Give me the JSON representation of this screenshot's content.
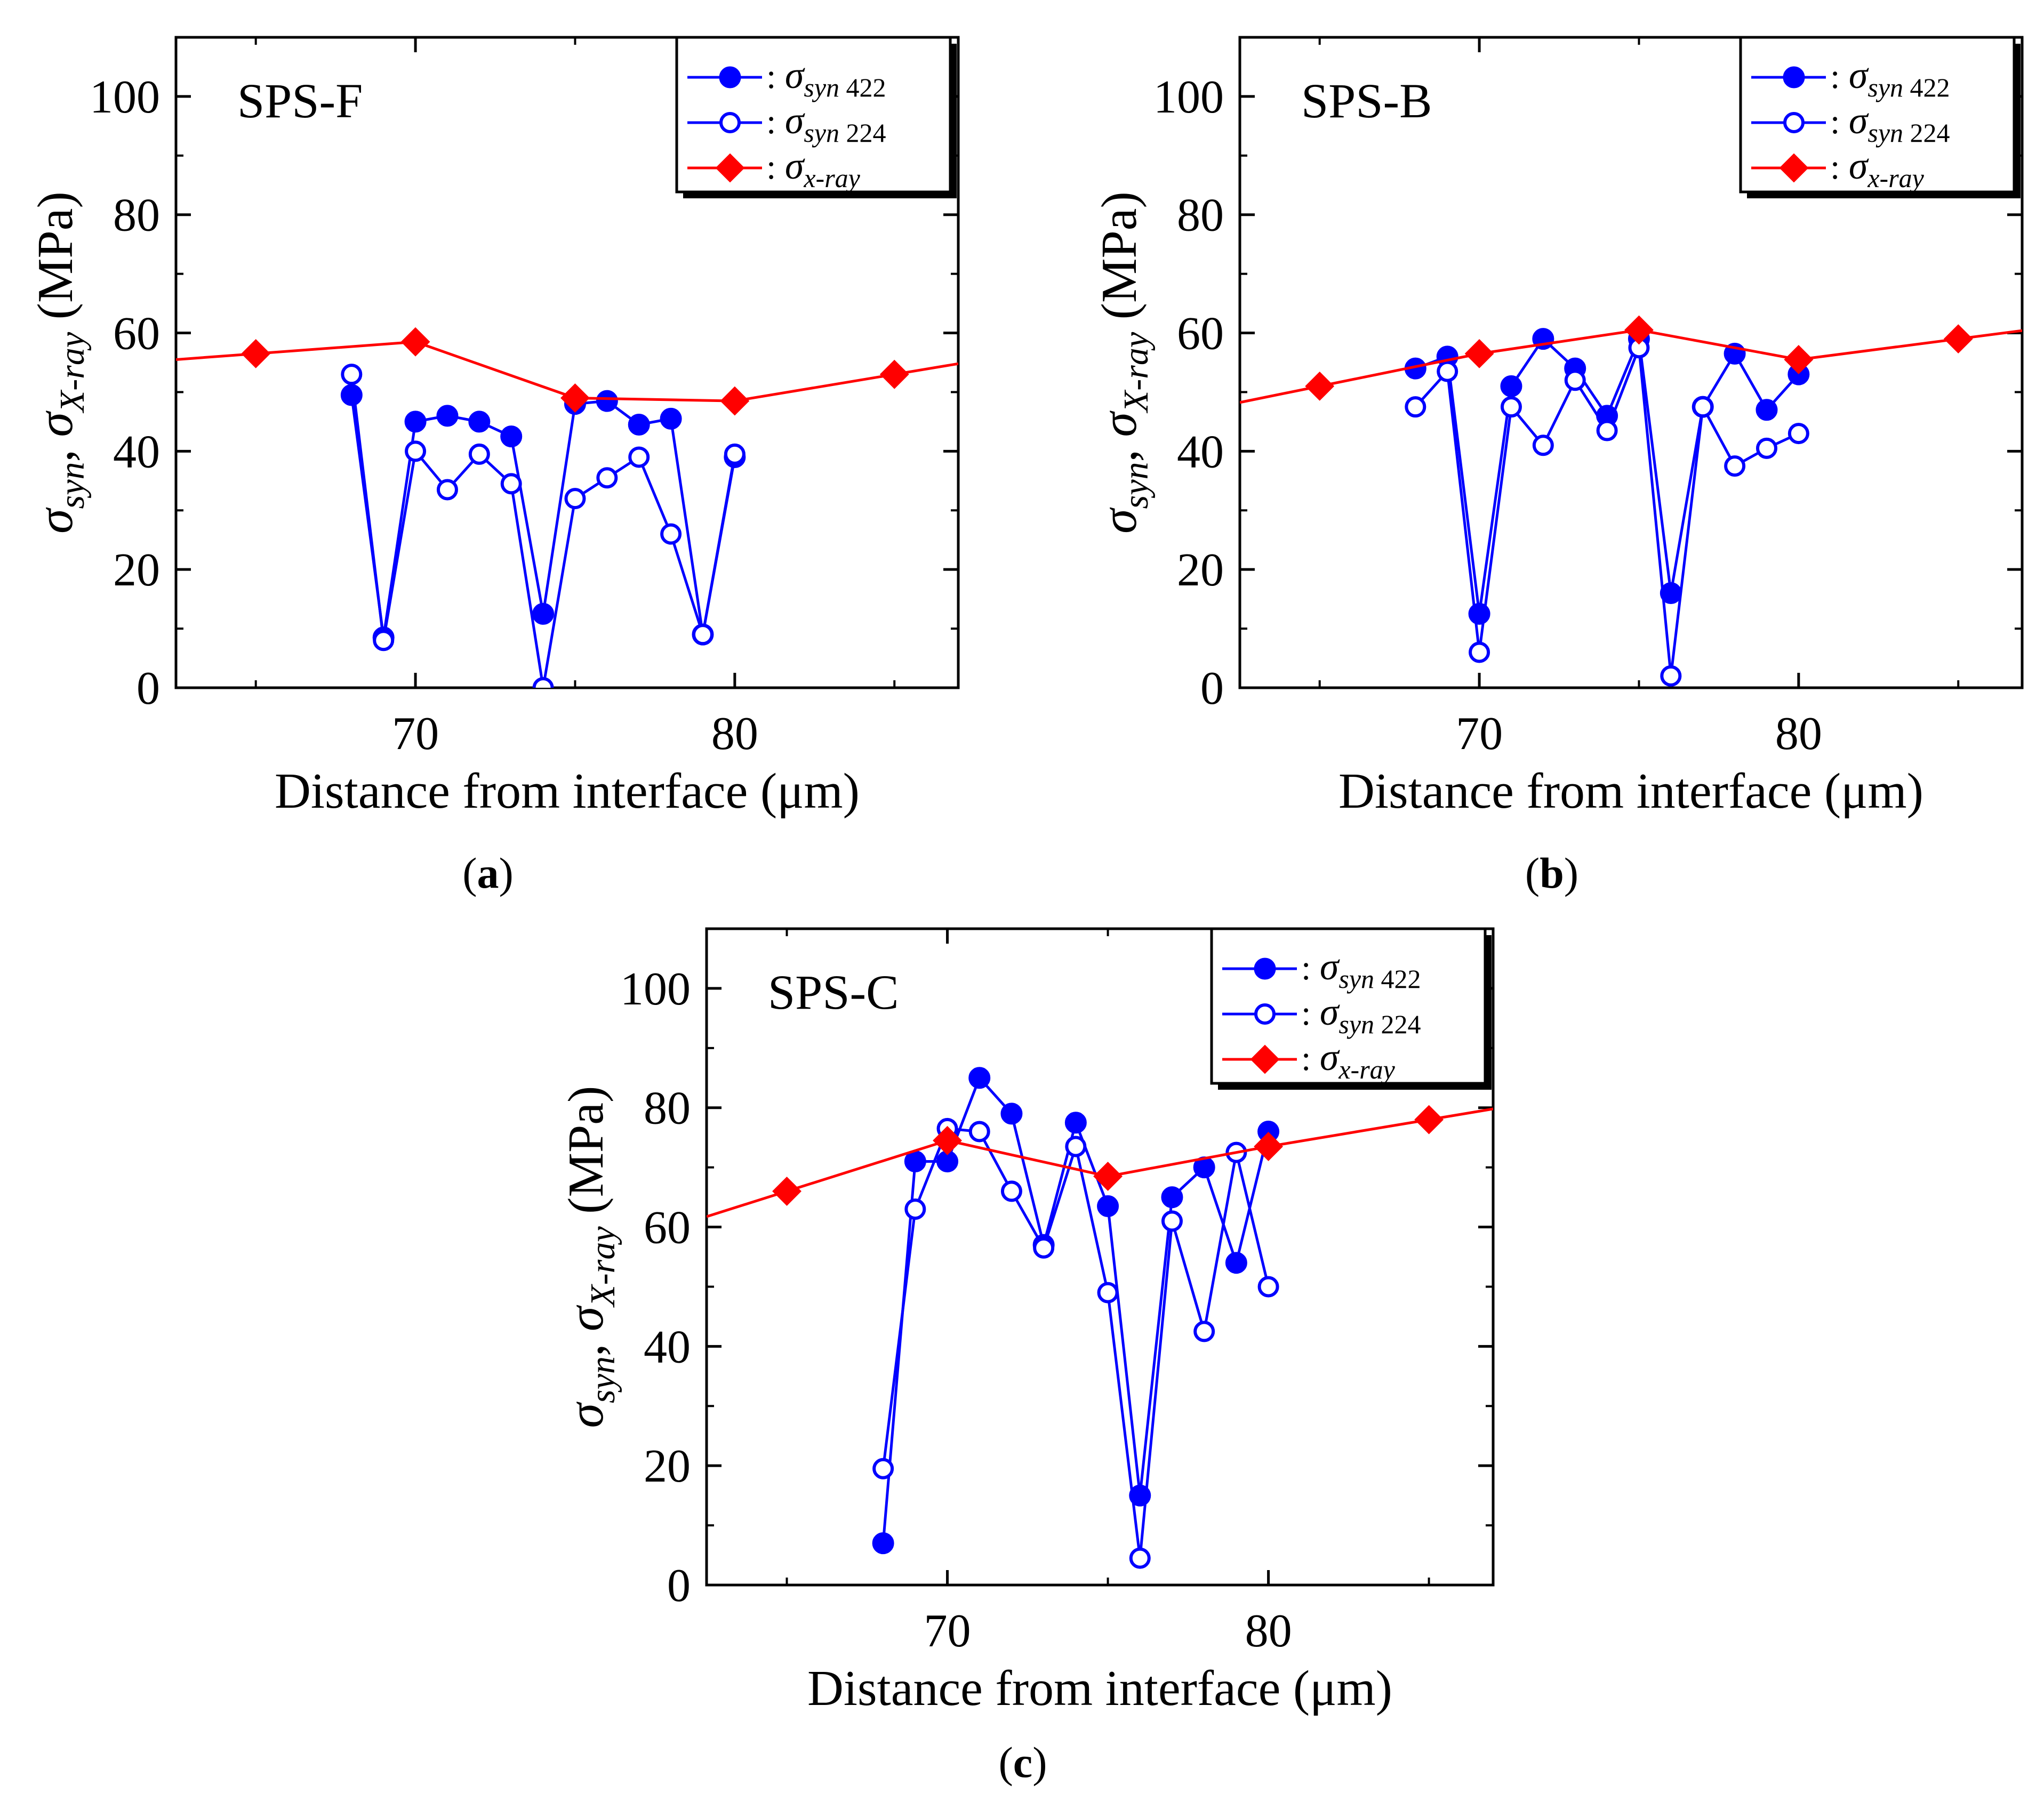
{
  "panel_labels": [
    "a",
    "b",
    "c"
  ],
  "legend_entries": [
    {
      "base": "σ",
      "sub": "syn",
      "extra": "422"
    },
    {
      "base": "σ",
      "sub": "syn",
      "extra": "224"
    },
    {
      "base": "σ",
      "sub": "x-ray",
      "extra": ""
    }
  ],
  "colors": {
    "blue": "#0000ff",
    "red": "#ff0000",
    "axis": "#000000"
  },
  "chart_data": [
    {
      "type": "line",
      "title": "SPS-F",
      "panel_label": "a",
      "xlabel": "Distance from interface (μm)",
      "ylabel_parts": {
        "s1": "σ",
        "sub1": "syn",
        "comma": ", ",
        "s2": "σ",
        "sub2": "X-ray",
        "unit": " (MPa)"
      },
      "xlim": [
        62.5,
        87
      ],
      "ylim": [
        0,
        110
      ],
      "xticks": [
        70,
        80
      ],
      "yticks": [
        0,
        20,
        40,
        60,
        80,
        100
      ],
      "series": [
        {
          "name": "σsyn 422",
          "style": "filled-circle",
          "color": "#0000ff",
          "x": [
            68,
            69,
            70,
            71,
            72,
            73,
            74,
            75,
            76,
            77,
            78,
            79,
            80
          ],
          "y": [
            49.5,
            8.5,
            45,
            46,
            45,
            42.5,
            12.5,
            48,
            48.5,
            44.5,
            45.5,
            9,
            39
          ]
        },
        {
          "name": "σsyn 224",
          "style": "open-circle",
          "color": "#0000ff",
          "x": [
            68,
            69,
            70,
            71,
            72,
            73,
            74,
            75,
            76,
            77,
            78,
            79,
            80
          ],
          "y": [
            53,
            8,
            40,
            33.5,
            39.5,
            34.5,
            0,
            32,
            35.5,
            39,
            26,
            9,
            39.5
          ]
        },
        {
          "name": "σx-ray",
          "style": "diamond",
          "color": "#ff0000",
          "x": [
            65,
            70,
            75,
            80,
            85
          ],
          "y": [
            56.5,
            58.5,
            49,
            48.5,
            53
          ]
        }
      ]
    },
    {
      "type": "line",
      "title": "SPS-B",
      "panel_label": "b",
      "xlabel": "Distance from interface (μm)",
      "ylabel_parts": {
        "s1": "σ",
        "sub1": "syn",
        "comma": ", ",
        "s2": "σ",
        "sub2": "X-ray",
        "unit": " (MPa)"
      },
      "xlim": [
        62.5,
        87
      ],
      "ylim": [
        0,
        110
      ],
      "xticks": [
        70,
        80
      ],
      "yticks": [
        0,
        20,
        40,
        60,
        80,
        100
      ],
      "series": [
        {
          "name": "σsyn 422",
          "style": "filled-circle",
          "color": "#0000ff",
          "x": [
            68,
            69,
            70,
            71,
            72,
            73,
            74,
            75,
            76,
            77,
            78,
            79,
            80
          ],
          "y": [
            54,
            56,
            12.5,
            51,
            59,
            54,
            46,
            59,
            16,
            47.5,
            56.5,
            47,
            53
          ]
        },
        {
          "name": "σsyn 224",
          "style": "open-circle",
          "color": "#0000ff",
          "x": [
            68,
            69,
            70,
            71,
            72,
            73,
            74,
            75,
            76,
            77,
            78,
            79,
            80
          ],
          "y": [
            47.5,
            53.5,
            6,
            47.5,
            41,
            52,
            43.5,
            57.5,
            2,
            47.5,
            37.5,
            40.5,
            43
          ]
        },
        {
          "name": "σx-ray",
          "style": "diamond",
          "color": "#ff0000",
          "x": [
            65,
            70,
            75,
            80,
            85
          ],
          "y": [
            51,
            56.5,
            60.5,
            55.5,
            59
          ]
        }
      ]
    },
    {
      "type": "line",
      "title": "SPS-C",
      "panel_label": "c",
      "xlabel": "Distance from interface (μm)",
      "ylabel_parts": {
        "s1": "σ",
        "sub1": "syn",
        "comma": ", ",
        "s2": "σ",
        "sub2": "X-ray",
        "unit": " (MPa)"
      },
      "xlim": [
        62.5,
        87
      ],
      "ylim": [
        0,
        110
      ],
      "xticks": [
        70,
        80
      ],
      "yticks": [
        0,
        20,
        40,
        60,
        80,
        100
      ],
      "series": [
        {
          "name": "σsyn 422",
          "style": "filled-circle",
          "color": "#0000ff",
          "x": [
            68,
            69,
            70,
            71,
            72,
            73,
            74,
            75,
            76,
            77,
            78,
            79,
            80
          ],
          "y": [
            7,
            71,
            71,
            85,
            79,
            57,
            77.5,
            63.5,
            15,
            65,
            70,
            54,
            76
          ]
        },
        {
          "name": "σsyn 224",
          "style": "open-circle",
          "color": "#0000ff",
          "x": [
            68,
            69,
            70,
            71,
            72,
            73,
            74,
            75,
            76,
            77,
            78,
            79,
            80
          ],
          "y": [
            19.5,
            63,
            76.5,
            76,
            66,
            56.5,
            73.5,
            49,
            4.5,
            61,
            42.5,
            72.5,
            50
          ]
        },
        {
          "name": "σx-ray",
          "style": "diamond",
          "color": "#ff0000",
          "x": [
            65,
            70,
            75,
            80,
            85
          ],
          "y": [
            66,
            74.5,
            68.5,
            73.5,
            78
          ]
        }
      ]
    }
  ]
}
